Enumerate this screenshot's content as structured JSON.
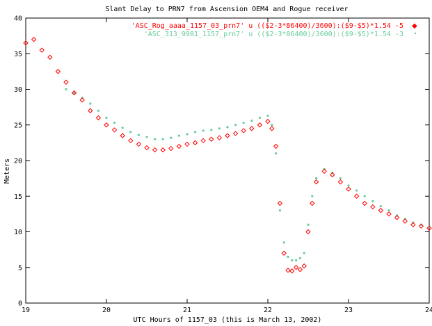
{
  "chart_data": {
    "type": "scatter",
    "title": "Slant Delay to PRN7 from Ascension OEM4 and Rogue receiver",
    "xlabel": "UTC Hours of 1157_03 (this is March 13, 2002)",
    "ylabel": "Meters",
    "xlim": [
      19,
      24
    ],
    "ylim": [
      0,
      40
    ],
    "xticks": [
      "19",
      "20",
      "21",
      "22",
      "23",
      "24"
    ],
    "yticks": [
      "0",
      "5",
      "10",
      "15",
      "20",
      "25",
      "30",
      "35",
      "40"
    ],
    "grid": false,
    "legend_position": "top-right",
    "series": [
      {
        "name": "'ASC_Rog_aaaa_1157_03_prn7' u (($2-3*86400)/3600):($9-$5)*1.54 -5",
        "color": "#ff0000",
        "marker": "diamond",
        "x": [
          19.0,
          19.1,
          19.2,
          19.3,
          19.4,
          19.5,
          19.6,
          19.7,
          19.8,
          19.9,
          20.0,
          20.1,
          20.2,
          20.3,
          20.4,
          20.5,
          20.6,
          20.7,
          20.8,
          20.9,
          21.0,
          21.1,
          21.2,
          21.3,
          21.4,
          21.5,
          21.6,
          21.7,
          21.8,
          21.9,
          22.0,
          22.05,
          22.1,
          22.15,
          22.2,
          22.25,
          22.3,
          22.35,
          22.4,
          22.45,
          22.5,
          22.55,
          22.6,
          22.7,
          22.8,
          22.9,
          23.0,
          23.1,
          23.2,
          23.3,
          23.4,
          23.5,
          23.6,
          23.7,
          23.8,
          23.9,
          24.0
        ],
        "y": [
          36.5,
          37.0,
          35.5,
          34.5,
          32.5,
          31.0,
          29.5,
          28.5,
          27.0,
          26.0,
          25.0,
          24.3,
          23.5,
          22.8,
          22.3,
          21.8,
          21.5,
          21.5,
          21.7,
          22.0,
          22.3,
          22.5,
          22.8,
          23.0,
          23.2,
          23.5,
          23.8,
          24.2,
          24.5,
          25.0,
          25.5,
          24.5,
          22.0,
          14.0,
          7.0,
          4.6,
          4.5,
          5.0,
          4.7,
          5.2,
          10.0,
          14.0,
          17.0,
          18.5,
          18.0,
          17.0,
          16.0,
          15.0,
          14.0,
          13.5,
          13.0,
          12.5,
          12.0,
          11.5,
          11.0,
          10.8,
          10.5
        ]
      },
      {
        "name": "'ASC_313_9981_1157_prn7' u (($2-3*86400)/3600):($9-$5)*1.54 -3",
        "color": "#66cc99",
        "marker": "dot",
        "x": [
          19.5,
          19.6,
          19.7,
          19.8,
          19.9,
          20.0,
          20.1,
          20.2,
          20.3,
          20.4,
          20.5,
          20.6,
          20.7,
          20.8,
          20.9,
          21.0,
          21.1,
          21.2,
          21.3,
          21.4,
          21.5,
          21.6,
          21.7,
          21.8,
          21.9,
          22.0,
          22.05,
          22.1,
          22.15,
          22.2,
          22.25,
          22.3,
          22.35,
          22.4,
          22.45,
          22.5,
          22.55,
          22.6,
          22.7,
          22.8,
          22.9,
          23.0,
          23.1,
          23.2,
          23.3,
          23.4,
          23.5,
          23.6,
          23.7,
          23.8,
          23.9,
          24.0
        ],
        "y": [
          30.0,
          29.5,
          28.8,
          28.0,
          27.0,
          26.0,
          25.3,
          24.6,
          24.0,
          23.6,
          23.3,
          23.0,
          23.0,
          23.2,
          23.5,
          23.7,
          24.0,
          24.2,
          24.3,
          24.5,
          24.7,
          25.0,
          25.3,
          25.6,
          26.0,
          26.3,
          25.0,
          21.0,
          13.0,
          8.5,
          6.5,
          6.0,
          6.0,
          6.3,
          7.0,
          11.0,
          15.0,
          17.5,
          18.8,
          18.3,
          17.5,
          16.5,
          15.8,
          15.0,
          14.3,
          13.6,
          13.0,
          12.3,
          11.8,
          11.3,
          11.0,
          10.7
        ]
      }
    ]
  }
}
